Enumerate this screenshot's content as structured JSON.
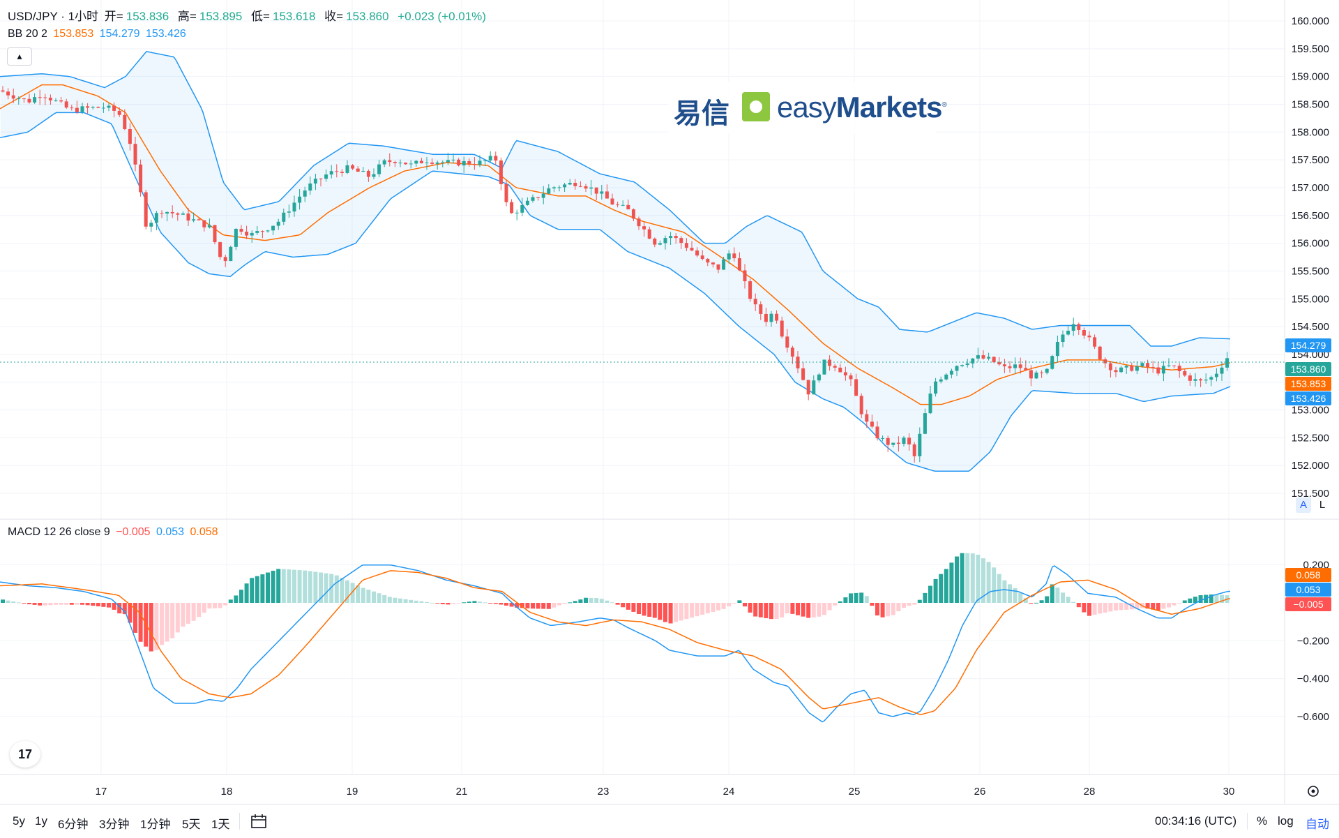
{
  "header": {
    "symbol": "USD/JPY · 1小时",
    "open_label": "开=",
    "open": "153.836",
    "high_label": "高=",
    "high": "153.895",
    "low_label": "低=",
    "low": "153.618",
    "close_label": "收=",
    "close": "153.860",
    "change": "+0.023 (+0.01%)"
  },
  "bb_legend": {
    "name": "BB 20 2",
    "basis": "153.853",
    "upper": "154.279",
    "lower": "153.426"
  },
  "macd_legend": {
    "name": "MACD 12 26 close 9",
    "hist": "−0.005",
    "macd": "0.053",
    "signal": "0.058"
  },
  "collapse_icon": "▴",
  "logo": {
    "cn": "易信",
    "en_light": "easy",
    "en_bold": "Markets",
    "mark": "®"
  },
  "tv_logo_text": "17",
  "colors": {
    "up": "#26a69a",
    "down": "#ef5350",
    "bb_basis": "#ff6d00",
    "bb_band": "#2196f3",
    "bb_fill": "rgba(33,150,243,0.08)",
    "macd_line": "#2196f3",
    "signal_line": "#ff6d00",
    "hist_up_strong": "#26a69a",
    "hist_up_weak": "#b2dfdb",
    "hist_down_strong": "#ff5252",
    "hist_down_weak": "#ffcdd2",
    "grid": "#f0f3fa",
    "text": "#131722"
  },
  "price_axis_labels": [
    "160.000",
    "159.500",
    "159.000",
    "158.500",
    "158.000",
    "157.500",
    "157.000",
    "156.500",
    "156.000",
    "155.500",
    "155.000",
    "154.500",
    "154.000",
    "153.000",
    "152.500",
    "152.000",
    "151.500"
  ],
  "price_badges": [
    {
      "text": "154.279",
      "color": "#2196f3"
    },
    {
      "text": "153.860",
      "color": "#26a69a"
    },
    {
      "text": "153.853",
      "color": "#ff6d00"
    },
    {
      "text": "153.426",
      "color": "#2196f3"
    }
  ],
  "macd_axis_labels": [
    "0.200",
    "−0.200",
    "−0.400",
    "−0.600"
  ],
  "macd_badges": [
    {
      "text": "0.058",
      "color": "#ff6d00"
    },
    {
      "text": "0.053",
      "color": "#2196f3"
    },
    {
      "text": "−0.005",
      "color": "#ff5252"
    }
  ],
  "time_axis_labels": [
    "17",
    "18",
    "19",
    "21",
    "23",
    "24",
    "25",
    "26",
    "28",
    "30"
  ],
  "axis_buttons": {
    "auto": "A",
    "log": "L"
  },
  "toolbar": {
    "timeframes": [
      "5y",
      "1y",
      "6分钟",
      "3分钟",
      "1分钟",
      "5天",
      "1天"
    ],
    "calendar_icon": "calendar-icon",
    "clock": "00:34:16 (UTC)",
    "percent": "%",
    "log": "log",
    "auto": "自动"
  },
  "chart_data": {
    "type": "candlestick",
    "title": "USD/JPY · 1小时",
    "x_labels": [
      "17",
      "18",
      "19",
      "21",
      "23",
      "24",
      "25",
      "26",
      "28",
      "30"
    ],
    "y_range": [
      151.5,
      160.0
    ],
    "bb_anchors": {
      "basis": [
        [
          0,
          158.42
        ],
        [
          60,
          158.85
        ],
        [
          90,
          158.85
        ],
        [
          140,
          158.65
        ],
        [
          180,
          158.35
        ],
        [
          230,
          157.3
        ],
        [
          270,
          156.6
        ],
        [
          320,
          156.15
        ],
        [
          380,
          156.05
        ],
        [
          430,
          156.15
        ],
        [
          470,
          156.55
        ],
        [
          530,
          157.0
        ],
        [
          580,
          157.3
        ],
        [
          640,
          157.45
        ],
        [
          700,
          157.4
        ],
        [
          740,
          157.0
        ],
        [
          800,
          156.85
        ],
        [
          840,
          156.85
        ],
        [
          880,
          156.6
        ],
        [
          920,
          156.4
        ],
        [
          980,
          156.2
        ],
        [
          1040,
          155.7
        ],
        [
          1080,
          155.35
        ],
        [
          1130,
          154.8
        ],
        [
          1180,
          154.2
        ],
        [
          1230,
          153.75
        ],
        [
          1280,
          153.4
        ],
        [
          1320,
          153.1
        ],
        [
          1350,
          153.1
        ],
        [
          1390,
          153.25
        ],
        [
          1430,
          153.55
        ],
        [
          1480,
          153.75
        ],
        [
          1530,
          153.9
        ],
        [
          1580,
          153.9
        ],
        [
          1620,
          153.8
        ],
        [
          1680,
          153.72
        ],
        [
          1740,
          153.78
        ],
        [
          1765,
          153.853
        ]
      ],
      "upper": [
        [
          0,
          159.0
        ],
        [
          60,
          159.05
        ],
        [
          100,
          159.0
        ],
        [
          150,
          158.8
        ],
        [
          180,
          159.0
        ],
        [
          210,
          159.45
        ],
        [
          250,
          159.35
        ],
        [
          290,
          158.4
        ],
        [
          320,
          157.1
        ],
        [
          350,
          156.6
        ],
        [
          400,
          156.75
        ],
        [
          450,
          157.4
        ],
        [
          500,
          157.8
        ],
        [
          550,
          157.75
        ],
        [
          620,
          157.6
        ],
        [
          680,
          157.6
        ],
        [
          720,
          157.35
        ],
        [
          740,
          157.85
        ],
        [
          800,
          157.65
        ],
        [
          860,
          157.25
        ],
        [
          910,
          157.1
        ],
        [
          960,
          156.6
        ],
        [
          1010,
          156.0
        ],
        [
          1040,
          156.0
        ],
        [
          1070,
          156.3
        ],
        [
          1100,
          156.5
        ],
        [
          1150,
          156.2
        ],
        [
          1180,
          155.5
        ],
        [
          1230,
          155.0
        ],
        [
          1260,
          154.85
        ],
        [
          1290,
          154.45
        ],
        [
          1330,
          154.4
        ],
        [
          1360,
          154.55
        ],
        [
          1400,
          154.75
        ],
        [
          1440,
          154.65
        ],
        [
          1480,
          154.45
        ],
        [
          1520,
          154.52
        ],
        [
          1580,
          154.52
        ],
        [
          1620,
          154.52
        ],
        [
          1650,
          154.15
        ],
        [
          1680,
          154.15
        ],
        [
          1720,
          154.3
        ],
        [
          1765,
          154.279
        ]
      ],
      "lower": [
        [
          0,
          157.9
        ],
        [
          40,
          158.0
        ],
        [
          80,
          158.35
        ],
        [
          120,
          158.35
        ],
        [
          160,
          158.15
        ],
        [
          190,
          157.3
        ],
        [
          230,
          156.2
        ],
        [
          270,
          155.65
        ],
        [
          300,
          155.45
        ],
        [
          330,
          155.4
        ],
        [
          350,
          155.6
        ],
        [
          380,
          155.85
        ],
        [
          420,
          155.75
        ],
        [
          470,
          155.8
        ],
        [
          510,
          156.0
        ],
        [
          560,
          156.8
        ],
        [
          620,
          157.3
        ],
        [
          700,
          157.2
        ],
        [
          730,
          157.05
        ],
        [
          760,
          156.5
        ],
        [
          800,
          156.25
        ],
        [
          860,
          156.25
        ],
        [
          900,
          155.85
        ],
        [
          960,
          155.55
        ],
        [
          1010,
          155.1
        ],
        [
          1060,
          154.5
        ],
        [
          1110,
          154.0
        ],
        [
          1140,
          153.5
        ],
        [
          1180,
          153.2
        ],
        [
          1210,
          153.05
        ],
        [
          1240,
          152.75
        ],
        [
          1270,
          152.35
        ],
        [
          1300,
          152.05
        ],
        [
          1340,
          151.9
        ],
        [
          1390,
          151.9
        ],
        [
          1420,
          152.25
        ],
        [
          1450,
          152.9
        ],
        [
          1480,
          153.35
        ],
        [
          1540,
          153.3
        ],
        [
          1600,
          153.3
        ],
        [
          1640,
          153.15
        ],
        [
          1680,
          153.25
        ],
        [
          1740,
          153.3
        ],
        [
          1765,
          153.426
        ]
      ]
    },
    "close_anchors": [
      [
        0,
        158.75
      ],
      [
        40,
        158.55
      ],
      [
        60,
        158.7
      ],
      [
        100,
        158.4
      ],
      [
        150,
        158.45
      ],
      [
        170,
        158.35
      ],
      [
        185,
        157.9
      ],
      [
        200,
        157.0
      ],
      [
        210,
        156.3
      ],
      [
        230,
        156.6
      ],
      [
        260,
        156.5
      ],
      [
        300,
        156.3
      ],
      [
        320,
        155.6
      ],
      [
        340,
        156.3
      ],
      [
        360,
        156.15
      ],
      [
        380,
        156.25
      ],
      [
        400,
        156.4
      ],
      [
        440,
        157.0
      ],
      [
        470,
        157.25
      ],
      [
        500,
        157.35
      ],
      [
        530,
        157.2
      ],
      [
        550,
        157.45
      ],
      [
        570,
        157.5
      ],
      [
        590,
        157.4
      ],
      [
        610,
        157.5
      ],
      [
        640,
        157.45
      ],
      [
        690,
        157.45
      ],
      [
        700,
        157.5
      ],
      [
        710,
        157.55
      ],
      [
        730,
        156.5
      ],
      [
        760,
        156.75
      ],
      [
        790,
        157.0
      ],
      [
        810,
        157.05
      ],
      [
        830,
        157.1
      ],
      [
        860,
        156.9
      ],
      [
        880,
        156.7
      ],
      [
        900,
        156.6
      ],
      [
        920,
        156.3
      ],
      [
        940,
        156.0
      ],
      [
        960,
        156.15
      ],
      [
        990,
        155.9
      ],
      [
        1010,
        155.65
      ],
      [
        1030,
        155.55
      ],
      [
        1050,
        155.9
      ],
      [
        1060,
        155.5
      ],
      [
        1080,
        154.9
      ],
      [
        1100,
        154.6
      ],
      [
        1110,
        154.8
      ],
      [
        1120,
        154.4
      ],
      [
        1140,
        153.9
      ],
      [
        1160,
        153.3
      ],
      [
        1180,
        153.85
      ],
      [
        1200,
        153.8
      ],
      [
        1220,
        153.5
      ],
      [
        1240,
        152.8
      ],
      [
        1260,
        152.5
      ],
      [
        1280,
        152.35
      ],
      [
        1300,
        152.5
      ],
      [
        1310,
        152.1
      ],
      [
        1320,
        152.6
      ],
      [
        1330,
        153.1
      ],
      [
        1340,
        153.5
      ],
      [
        1370,
        153.8
      ],
      [
        1400,
        153.95
      ],
      [
        1420,
        153.9
      ],
      [
        1440,
        153.75
      ],
      [
        1460,
        153.8
      ],
      [
        1480,
        153.6
      ],
      [
        1500,
        153.65
      ],
      [
        1520,
        154.3
      ],
      [
        1540,
        154.6
      ],
      [
        1560,
        154.3
      ],
      [
        1580,
        153.9
      ],
      [
        1600,
        153.7
      ],
      [
        1640,
        153.8
      ],
      [
        1660,
        153.7
      ],
      [
        1680,
        153.8
      ],
      [
        1700,
        153.6
      ],
      [
        1720,
        153.5
      ],
      [
        1740,
        153.6
      ],
      [
        1760,
        153.95
      ],
      [
        1770,
        154.0
      ],
      [
        1790,
        154.05
      ],
      [
        1810,
        154.0
      ],
      [
        1830,
        154.05
      ],
      [
        1850,
        154.0
      ],
      [
        1860,
        153.86
      ]
    ],
    "macd_range": [
      -0.7,
      0.24
    ],
    "macd_anchors": [
      [
        0,
        0.11
      ],
      [
        40,
        0.09
      ],
      [
        80,
        0.08
      ],
      [
        120,
        0.06
      ],
      [
        160,
        0.02
      ],
      [
        180,
        -0.05
      ],
      [
        200,
        -0.25
      ],
      [
        220,
        -0.45
      ],
      [
        250,
        -0.53
      ],
      [
        280,
        -0.53
      ],
      [
        300,
        -0.51
      ],
      [
        320,
        -0.52
      ],
      [
        340,
        -0.45
      ],
      [
        360,
        -0.35
      ],
      [
        400,
        -0.2
      ],
      [
        440,
        -0.05
      ],
      [
        480,
        0.1
      ],
      [
        520,
        0.2
      ],
      [
        560,
        0.2
      ],
      [
        600,
        0.17
      ],
      [
        640,
        0.12
      ],
      [
        680,
        0.09
      ],
      [
        720,
        0.05
      ],
      [
        740,
        -0.02
      ],
      [
        760,
        -0.08
      ],
      [
        790,
        -0.12
      ],
      [
        830,
        -0.1
      ],
      [
        860,
        -0.08
      ],
      [
        880,
        -0.09
      ],
      [
        900,
        -0.13
      ],
      [
        940,
        -0.2
      ],
      [
        960,
        -0.25
      ],
      [
        1000,
        -0.28
      ],
      [
        1040,
        -0.28
      ],
      [
        1060,
        -0.25
      ],
      [
        1080,
        -0.35
      ],
      [
        1110,
        -0.42
      ],
      [
        1130,
        -0.44
      ],
      [
        1160,
        -0.58
      ],
      [
        1180,
        -0.63
      ],
      [
        1200,
        -0.55
      ],
      [
        1220,
        -0.48
      ],
      [
        1240,
        -0.46
      ],
      [
        1260,
        -0.58
      ],
      [
        1280,
        -0.6
      ],
      [
        1300,
        -0.58
      ],
      [
        1310,
        -0.59
      ],
      [
        1320,
        -0.57
      ],
      [
        1340,
        -0.45
      ],
      [
        1360,
        -0.3
      ],
      [
        1380,
        -0.12
      ],
      [
        1400,
        0.01
      ],
      [
        1420,
        0.06
      ],
      [
        1440,
        0.07
      ],
      [
        1460,
        0.06
      ],
      [
        1480,
        0.03
      ],
      [
        1500,
        0.1
      ],
      [
        1510,
        0.2
      ],
      [
        1530,
        0.15
      ],
      [
        1560,
        0.05
      ],
      [
        1600,
        0.03
      ],
      [
        1630,
        -0.03
      ],
      [
        1660,
        -0.08
      ],
      [
        1680,
        -0.08
      ],
      [
        1700,
        -0.03
      ],
      [
        1720,
        0.01
      ],
      [
        1740,
        0.04
      ],
      [
        1760,
        0.06
      ],
      [
        1800,
        0.07
      ],
      [
        1820,
        0.06
      ],
      [
        1840,
        0.05
      ],
      [
        1860,
        0.053
      ]
    ],
    "signal_anchors": [
      [
        0,
        0.09
      ],
      [
        60,
        0.1
      ],
      [
        120,
        0.07
      ],
      [
        170,
        0.04
      ],
      [
        200,
        -0.05
      ],
      [
        230,
        -0.25
      ],
      [
        260,
        -0.4
      ],
      [
        300,
        -0.48
      ],
      [
        330,
        -0.5
      ],
      [
        360,
        -0.48
      ],
      [
        400,
        -0.38
      ],
      [
        440,
        -0.22
      ],
      [
        480,
        -0.05
      ],
      [
        520,
        0.12
      ],
      [
        560,
        0.17
      ],
      [
        600,
        0.16
      ],
      [
        640,
        0.13
      ],
      [
        680,
        0.08
      ],
      [
        720,
        0.06
      ],
      [
        760,
        -0.05
      ],
      [
        800,
        -0.1
      ],
      [
        840,
        -0.12
      ],
      [
        880,
        -0.09
      ],
      [
        920,
        -0.1
      ],
      [
        960,
        -0.14
      ],
      [
        1000,
        -0.21
      ],
      [
        1040,
        -0.25
      ],
      [
        1080,
        -0.28
      ],
      [
        1120,
        -0.35
      ],
      [
        1160,
        -0.5
      ],
      [
        1180,
        -0.56
      ],
      [
        1220,
        -0.53
      ],
      [
        1260,
        -0.5
      ],
      [
        1290,
        -0.55
      ],
      [
        1320,
        -0.59
      ],
      [
        1340,
        -0.57
      ],
      [
        1370,
        -0.45
      ],
      [
        1400,
        -0.25
      ],
      [
        1440,
        -0.05
      ],
      [
        1480,
        0.04
      ],
      [
        1520,
        0.11
      ],
      [
        1560,
        0.12
      ],
      [
        1600,
        0.07
      ],
      [
        1640,
        -0.02
      ],
      [
        1680,
        -0.06
      ],
      [
        1720,
        -0.03
      ],
      [
        1760,
        0.02
      ],
      [
        1800,
        0.05
      ],
      [
        1840,
        0.06
      ],
      [
        1860,
        0.058
      ]
    ]
  }
}
